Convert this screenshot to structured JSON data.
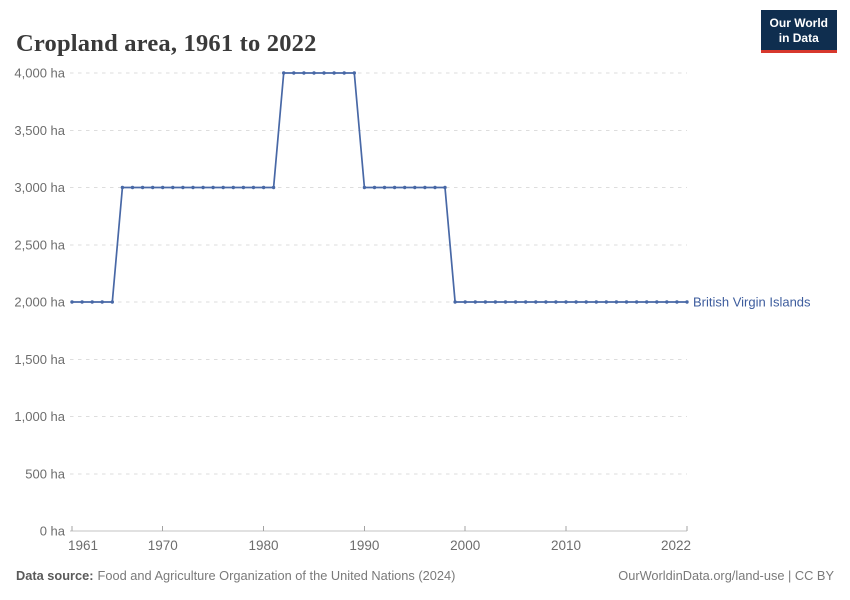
{
  "header": {
    "title": "Cropland area, 1961 to 2022",
    "logo_line1": "Our World",
    "logo_line2": "in Data"
  },
  "chart_data": {
    "type": "line",
    "title": "Cropland area, 1961 to 2022",
    "entity": "British Virgin Islands",
    "unit": "ha",
    "xlabel": "",
    "ylabel": "",
    "xlim": [
      1961,
      2022
    ],
    "ylim": [
      0,
      4000
    ],
    "grid": "horizontal dashed",
    "legend_position": "end-of-line label",
    "x_ticks": [
      1961,
      1970,
      1980,
      1990,
      2000,
      2010,
      2022
    ],
    "x_tick_labels": [
      "1961",
      "1970",
      "1980",
      "1990",
      "2000",
      "2010",
      "2022"
    ],
    "y_ticks": [
      0,
      500,
      1000,
      1500,
      2000,
      2500,
      3000,
      3500,
      4000
    ],
    "y_tick_labels": [
      "0 ha",
      "500 ha",
      "1,000 ha",
      "1,500 ha",
      "2,000 ha",
      "2,500 ha",
      "3,000 ha",
      "3,500 ha",
      "4,000 ha"
    ],
    "years": [
      1961,
      1962,
      1963,
      1964,
      1965,
      1966,
      1967,
      1968,
      1969,
      1970,
      1971,
      1972,
      1973,
      1974,
      1975,
      1976,
      1977,
      1978,
      1979,
      1980,
      1981,
      1982,
      1983,
      1984,
      1985,
      1986,
      1987,
      1988,
      1989,
      1990,
      1991,
      1992,
      1993,
      1994,
      1995,
      1996,
      1997,
      1998,
      1999,
      2000,
      2001,
      2002,
      2003,
      2004,
      2005,
      2006,
      2007,
      2008,
      2009,
      2010,
      2011,
      2012,
      2013,
      2014,
      2015,
      2016,
      2017,
      2018,
      2019,
      2020,
      2021,
      2022
    ],
    "values": [
      2000,
      2000,
      2000,
      2000,
      2000,
      3000,
      3000,
      3000,
      3000,
      3000,
      3000,
      3000,
      3000,
      3000,
      3000,
      3000,
      3000,
      3000,
      3000,
      3000,
      3000,
      4000,
      4000,
      4000,
      4000,
      4000,
      4000,
      4000,
      4000,
      3000,
      3000,
      3000,
      3000,
      3000,
      3000,
      3000,
      3000,
      3000,
      2000,
      2000,
      2000,
      2000,
      2000,
      2000,
      2000,
      2000,
      2000,
      2000,
      2000,
      2000,
      2000,
      2000,
      2000,
      2000,
      2000,
      2000,
      2000,
      2000,
      2000,
      2000,
      2000,
      2000
    ],
    "colors": {
      "line": "#4868a6",
      "marker": "#4868a6",
      "entity_label": "#3d5c9d",
      "grid": "#dddddd",
      "axis": "#c3c3c3",
      "tick": "#a3a3a3",
      "axis_text": "#6d6d6d"
    }
  },
  "footer": {
    "source_label": "Data source:",
    "source_text": "Food and Agriculture Organization of the United Nations (2024)",
    "credit": "OurWorldinData.org/land-use | CC BY"
  }
}
